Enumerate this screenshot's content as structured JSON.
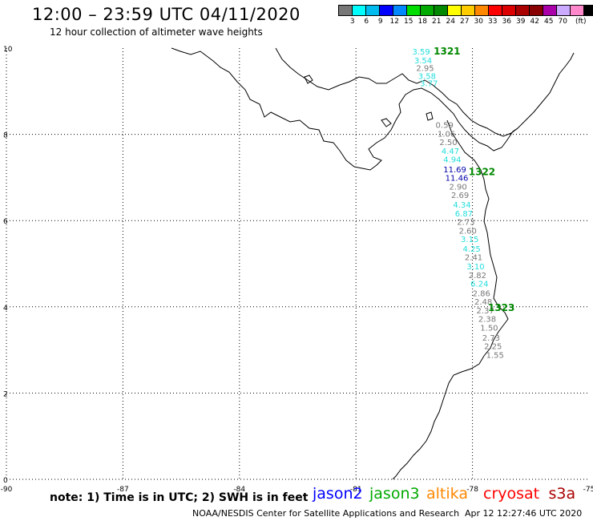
{
  "header": {
    "title": "12:00 – 23:59 UTC 04/11/2020",
    "subtitle": "12 hour collection of altimeter wave heights"
  },
  "colors": {
    "cyan": "#22dddd",
    "gray": "#777777",
    "navy": "#0000aa",
    "green": "#008800",
    "jason2": "#0000ff",
    "jason3": "#00aa00",
    "altika": "#ff8800",
    "cryosat": "#ff0000",
    "s3a": "#aa0000"
  },
  "scale": {
    "colors": [
      "#777777",
      "#00ffff",
      "#00bbee",
      "#0000ff",
      "#0088ff",
      "#00dd00",
      "#00aa00",
      "#008800",
      "#ffff00",
      "#ffcc00",
      "#ff8800",
      "#ff0000",
      "#dd0000",
      "#aa0000",
      "#880000",
      "#aa00aa",
      "#ccaaff",
      "#ff88cc",
      "#000000"
    ],
    "labels": [
      "3",
      "6",
      "9",
      "12",
      "15",
      "18",
      "21",
      "24",
      "27",
      "30",
      "33",
      "36",
      "39",
      "42",
      "45",
      "70"
    ],
    "unit": "(ft)"
  },
  "map_axes": {
    "lon_labels": [
      "-90",
      "-87",
      "-84",
      "-81",
      "-78",
      "-75"
    ],
    "lat_labels": [
      "10",
      "8",
      "6",
      "4",
      "2",
      "0"
    ]
  },
  "tracks": [
    {
      "label": "1321",
      "color": "green",
      "lon": -79.0,
      "lat": 9.85
    },
    {
      "label": "1322",
      "color": "green",
      "lon": -78.1,
      "lat": 7.05
    },
    {
      "label": "1323",
      "color": "green",
      "lon": -77.6,
      "lat": 3.9
    }
  ],
  "observations": [
    {
      "value": "3.59",
      "color": "cyan",
      "lon": -79.55,
      "lat": 9.85
    },
    {
      "value": "3.54",
      "color": "cyan",
      "lon": -79.5,
      "lat": 9.65
    },
    {
      "value": "2.95",
      "color": "gray",
      "lon": -79.45,
      "lat": 9.47
    },
    {
      "value": "3.58",
      "color": "cyan",
      "lon": -79.4,
      "lat": 9.28
    },
    {
      "value": "3.77",
      "color": "cyan",
      "lon": -79.35,
      "lat": 9.12
    },
    {
      "value": "0.59",
      "color": "gray",
      "lon": -78.95,
      "lat": 8.15
    },
    {
      "value": "1.06",
      "color": "gray",
      "lon": -78.9,
      "lat": 7.95
    },
    {
      "value": "2.50",
      "color": "gray",
      "lon": -78.85,
      "lat": 7.75
    },
    {
      "value": "4.47",
      "color": "cyan",
      "lon": -78.8,
      "lat": 7.55
    },
    {
      "value": "4.94",
      "color": "cyan",
      "lon": -78.75,
      "lat": 7.35
    },
    {
      "value": "11.69",
      "color": "navy",
      "lon": -78.75,
      "lat": 7.12
    },
    {
      "value": "11.46",
      "color": "navy",
      "lon": -78.7,
      "lat": 6.92
    },
    {
      "value": "2.90",
      "color": "gray",
      "lon": -78.6,
      "lat": 6.72
    },
    {
      "value": "2.69",
      "color": "gray",
      "lon": -78.55,
      "lat": 6.52
    },
    {
      "value": "4.34",
      "color": "cyan",
      "lon": -78.5,
      "lat": 6.3
    },
    {
      "value": "6.87",
      "color": "cyan",
      "lon": -78.45,
      "lat": 6.1
    },
    {
      "value": "2.73",
      "color": "gray",
      "lon": -78.4,
      "lat": 5.9
    },
    {
      "value": "2.60",
      "color": "gray",
      "lon": -78.35,
      "lat": 5.7
    },
    {
      "value": "3.15",
      "color": "cyan",
      "lon": -78.3,
      "lat": 5.5
    },
    {
      "value": "4.25",
      "color": "cyan",
      "lon": -78.25,
      "lat": 5.28
    },
    {
      "value": "2.41",
      "color": "gray",
      "lon": -78.2,
      "lat": 5.08
    },
    {
      "value": "3.10",
      "color": "cyan",
      "lon": -78.15,
      "lat": 4.87
    },
    {
      "value": "2.82",
      "color": "gray",
      "lon": -78.1,
      "lat": 4.67
    },
    {
      "value": "6.24",
      "color": "cyan",
      "lon": -78.05,
      "lat": 4.47
    },
    {
      "value": "2.86",
      "color": "gray",
      "lon": -78.0,
      "lat": 4.25
    },
    {
      "value": "2.48",
      "color": "gray",
      "lon": -77.95,
      "lat": 4.05
    },
    {
      "value": "2.37",
      "color": "gray",
      "lon": -77.9,
      "lat": 3.85
    },
    {
      "value": "2.38",
      "color": "gray",
      "lon": -77.85,
      "lat": 3.65
    },
    {
      "value": "1.50",
      "color": "gray",
      "lon": -77.8,
      "lat": 3.45
    },
    {
      "value": "2.73",
      "color": "gray",
      "lon": -77.75,
      "lat": 3.22
    },
    {
      "value": "2.25",
      "color": "gray",
      "lon": -77.7,
      "lat": 3.02
    },
    {
      "value": "1.55",
      "color": "gray",
      "lon": -77.65,
      "lat": 2.82
    }
  ],
  "footer": {
    "note": "note: 1) Time is in UTC; 2) SWH is in feet",
    "legend": [
      {
        "name": "jason2",
        "color": "#0000ff"
      },
      {
        "name": "jason3",
        "color": "#00aa00"
      },
      {
        "name": "altika",
        "color": "#ff8800"
      },
      {
        "name": "cryosat",
        "color": "#ff0000"
      },
      {
        "name": "s3a",
        "color": "#aa0000"
      }
    ],
    "credit": "NOAA/NESDIS Center for Satellite Applications and Research",
    "timestamp": "Apr 12 12:27:46 UTC 2020"
  }
}
